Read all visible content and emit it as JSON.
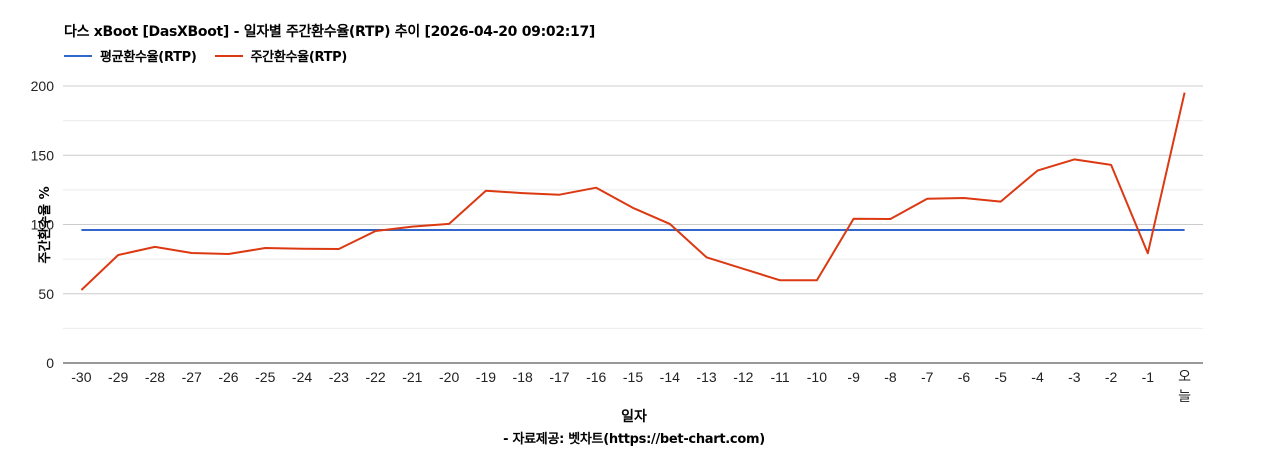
{
  "header": {
    "title": "다스 xBoot [DasXBoot] - 일자별 주간환수율(RTP) 추이 [2026-04-20 09:02:17]"
  },
  "legend": [
    {
      "label": "평균환수율(RTP)",
      "color": "#3366cc"
    },
    {
      "label": "주간환수율(RTP)",
      "color": "#dc3912"
    }
  ],
  "footer": {
    "source": "- 자료제공: 벳차트(https://bet-chart.com)"
  },
  "chart_data": {
    "type": "line",
    "title": "다스 xBoot [DasXBoot] - 일자별 주간환수율(RTP) 추이 [2026-04-20 09:02:17]",
    "xlabel": "일자",
    "ylabel": "주간환수율 %",
    "ylim": [
      0,
      200
    ],
    "yticks": [
      0,
      50,
      100,
      150,
      200
    ],
    "grid": true,
    "legend_position": "top",
    "categories": [
      "-30",
      "-29",
      "-28",
      "-27",
      "-26",
      "-25",
      "-24",
      "-23",
      "-22",
      "-21",
      "-20",
      "-19",
      "-18",
      "-17",
      "-16",
      "-15",
      "-14",
      "-13",
      "-12",
      "-11",
      "-10",
      "-9",
      "-8",
      "-7",
      "-6",
      "-5",
      "-4",
      "-3",
      "-2",
      "-1",
      "오늘"
    ],
    "series": [
      {
        "name": "평균환수율(RTP)",
        "color": "#3366cc",
        "values": [
          96,
          96,
          96,
          96,
          96,
          96,
          96,
          96,
          96,
          96,
          96,
          96,
          96,
          96,
          96,
          96,
          96,
          96,
          96,
          96,
          96,
          96,
          96,
          96,
          96,
          96,
          96,
          96,
          96,
          96,
          96
        ]
      },
      {
        "name": "주간환수율(RTP)",
        "color": "#dc3912",
        "values": [
          52.7,
          78,
          83.8,
          79.4,
          78.7,
          83,
          82.5,
          82.3,
          95.3,
          98.5,
          100.4,
          124.4,
          122.7,
          121.5,
          126.6,
          112,
          100.4,
          76.3,
          68,
          59.7,
          59.7,
          104.2,
          104,
          118.6,
          119.1,
          116.5,
          138.9,
          147,
          143,
          79.2,
          195.2
        ]
      }
    ]
  }
}
